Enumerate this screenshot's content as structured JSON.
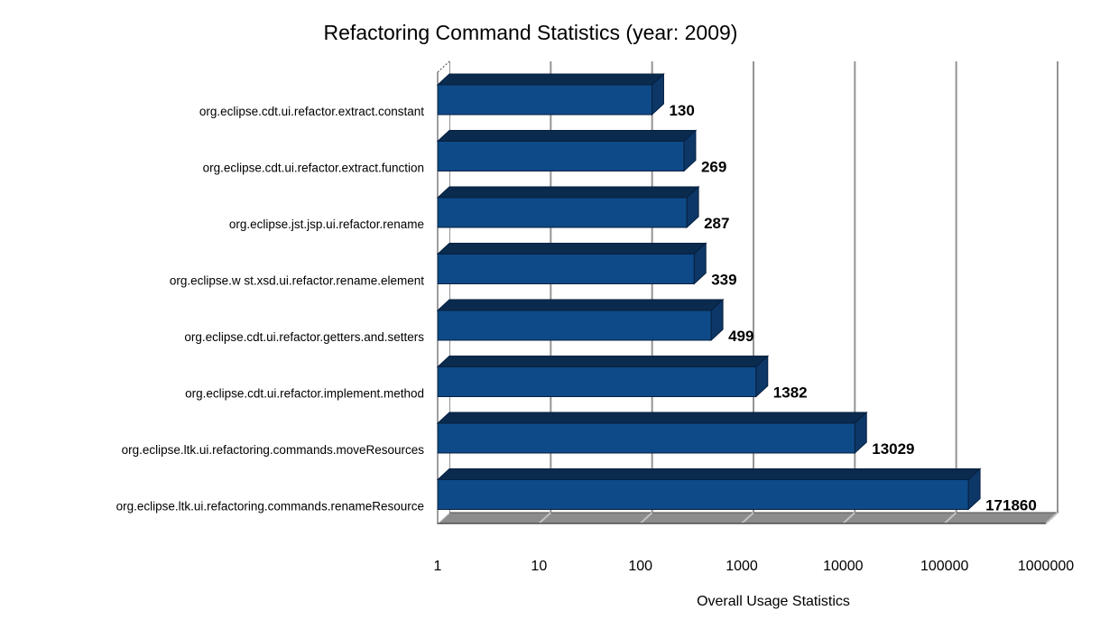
{
  "chart_data": {
    "type": "bar",
    "orientation": "horizontal",
    "x_scale": "log",
    "title": "Refactoring Command Statistics (year: 2009)",
    "xlabel": "Overall Usage Statistics",
    "categories": [
      "org.eclipse.cdt.ui.refactor.extract.constant",
      "org.eclipse.cdt.ui.refactor.extract.function",
      "org.eclipse.jst.jsp.ui.refactor.rename",
      "org.eclipse.w st.xsd.ui.refactor.rename.element",
      "org.eclipse.cdt.ui.refactor.getters.and.setters",
      "org.eclipse.cdt.ui.refactor.implement.method",
      "org.eclipse.ltk.ui.refactoring.commands.moveResources",
      "org.eclipse.ltk.ui.refactoring.commands.renameResource"
    ],
    "values": [
      130,
      269,
      287,
      339,
      499,
      1382,
      13029,
      171860
    ],
    "value_labels": [
      "130",
      "269",
      "287",
      "339",
      "499",
      "1382",
      "13029",
      "171860"
    ],
    "x_ticks": [
      "1",
      "10",
      "100",
      "1000",
      "10000",
      "100000",
      "1000000"
    ],
    "xlim": [
      1,
      1000000
    ],
    "grid": true,
    "legend": false,
    "colors": {
      "bar_front": "#0e4a87",
      "bar_top": "#0a2a4e",
      "bar_side": "#0d3767",
      "bar_outline": "#06203f",
      "gridline": "#949494",
      "floor": "#8c8c8c",
      "floor_diagonal": "#c2c2c2",
      "floor_edge": "#4f4f4f",
      "wall_edge": "#3c3c3c",
      "text": "#000000",
      "background": "#ffffff"
    }
  }
}
